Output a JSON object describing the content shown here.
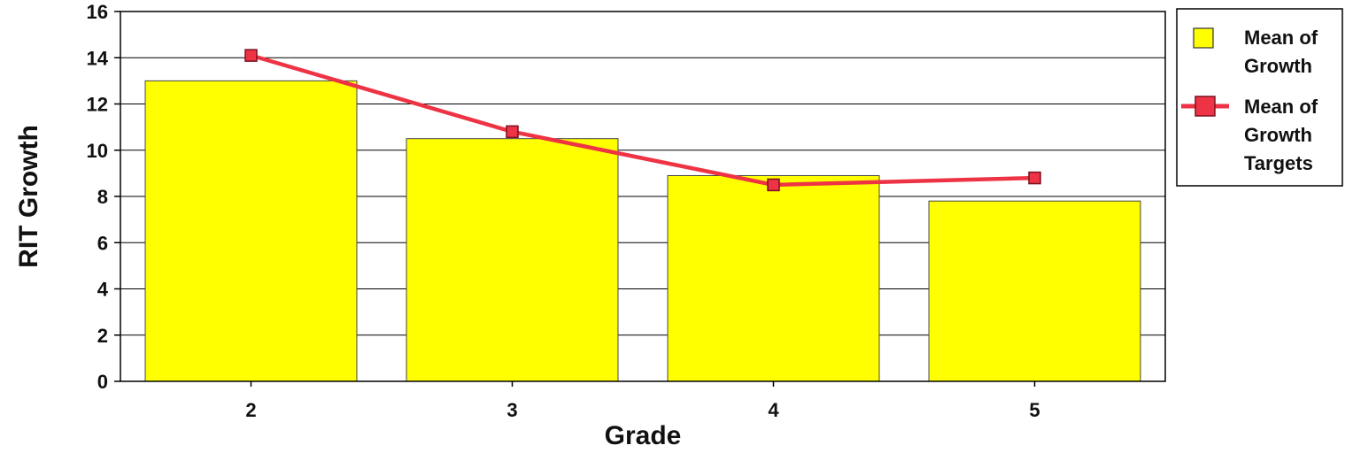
{
  "chart_data": {
    "type": "bar",
    "title": "",
    "xlabel": "Grade",
    "ylabel": "RIT Growth",
    "categories": [
      "2",
      "3",
      "4",
      "5"
    ],
    "ylim": [
      0,
      16
    ],
    "yticks": [
      0,
      2,
      4,
      6,
      8,
      10,
      12,
      14,
      16
    ],
    "grid": true,
    "legend_position": "right",
    "series": [
      {
        "name": "Mean of Growth",
        "type": "bar",
        "color": "#ffff00",
        "values": [
          13.0,
          10.5,
          8.9,
          7.8
        ]
      },
      {
        "name": "Mean of Growth Targets",
        "type": "line",
        "color": "#ee3344",
        "marker": "square",
        "values": [
          14.1,
          10.8,
          8.5,
          8.8
        ]
      }
    ],
    "legend": [
      {
        "lines": [
          "Mean of",
          "Growth"
        ]
      },
      {
        "lines": [
          "Mean of",
          "Growth",
          "Targets"
        ]
      }
    ]
  }
}
